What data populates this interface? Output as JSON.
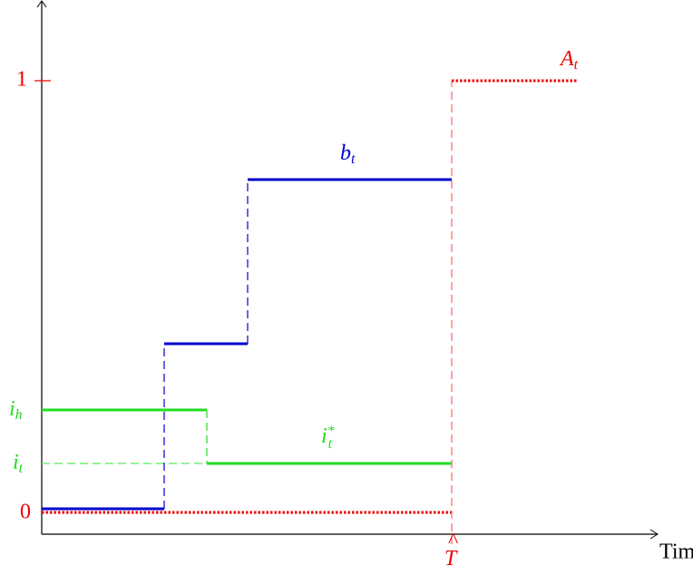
{
  "axes": {
    "x_label": "Time",
    "y_ticks": [
      "1",
      "0"
    ],
    "x_tick": {
      "base": "T",
      "accent": "^"
    }
  },
  "labels": {
    "i_h": {
      "base": "i",
      "sub": "h"
    },
    "i_t": {
      "base": "i",
      "sub": "t"
    },
    "b_t": {
      "base": "b",
      "sub": "t"
    },
    "A_t": {
      "base": "A",
      "sub": "t"
    },
    "i_star_t": {
      "base": "i",
      "sup": "*",
      "sub": "t"
    }
  }
}
